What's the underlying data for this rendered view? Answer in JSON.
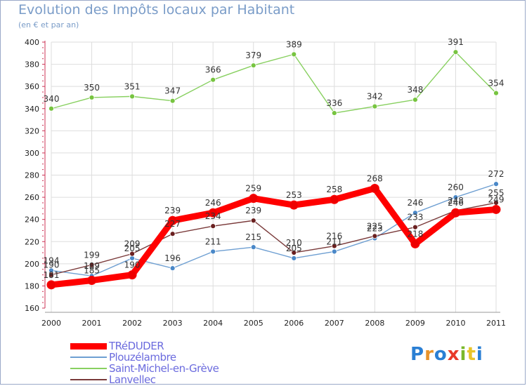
{
  "chart_data": {
    "type": "line",
    "title": "Evolution des Impôts locaux par Habitant",
    "subtitle": "(en € et par an)",
    "xlabel": "",
    "ylabel": "",
    "categories": [
      "2000",
      "2001",
      "2002",
      "2003",
      "2004",
      "2005",
      "2006",
      "2007",
      "2008",
      "2009",
      "2010",
      "2011"
    ],
    "ylim": [
      160,
      400
    ],
    "yticks": [
      160,
      180,
      200,
      220,
      240,
      260,
      280,
      300,
      320,
      340,
      360,
      380,
      400
    ],
    "grid": true,
    "legend_position": "bottom-left",
    "series": [
      {
        "name": "TRéDUDER",
        "color": "#ff0000",
        "marker_color": "#ee0000",
        "style": "thick",
        "values": [
          181,
          185,
          190,
          239,
          246,
          259,
          253,
          258,
          268,
          218,
          246,
          249
        ]
      },
      {
        "name": "Plouzélambre",
        "color": "#6e9fd2",
        "marker_color": "#4a88c8",
        "style": "thin",
        "values": [
          194,
          189,
          205,
          196,
          211,
          215,
          205,
          211,
          223,
          246,
          260,
          272
        ]
      },
      {
        "name": "Saint-Michel-en-Grève",
        "color": "#88d060",
        "marker_color": "#77c440",
        "style": "thin",
        "values": [
          340,
          350,
          351,
          347,
          366,
          379,
          389,
          336,
          342,
          348,
          391,
          354
        ]
      },
      {
        "name": "Lanvellec",
        "color": "#7a3a3a",
        "marker_color": "#6a2020",
        "style": "thin",
        "values": [
          190,
          199,
          209,
          227,
          234,
          239,
          210,
          216,
          225,
          233,
          248,
          255
        ]
      }
    ]
  },
  "branding": {
    "logo_text": "Proxiti",
    "logo_letters": [
      "P",
      "r",
      "o",
      "x",
      "i",
      "t",
      "i"
    ],
    "logo_colors": [
      "#2a7fd4",
      "#e8932a",
      "#2a7fd4",
      "#e83a2a",
      "#7ab82a",
      "#e8c42a",
      "#2a7fd4"
    ]
  }
}
